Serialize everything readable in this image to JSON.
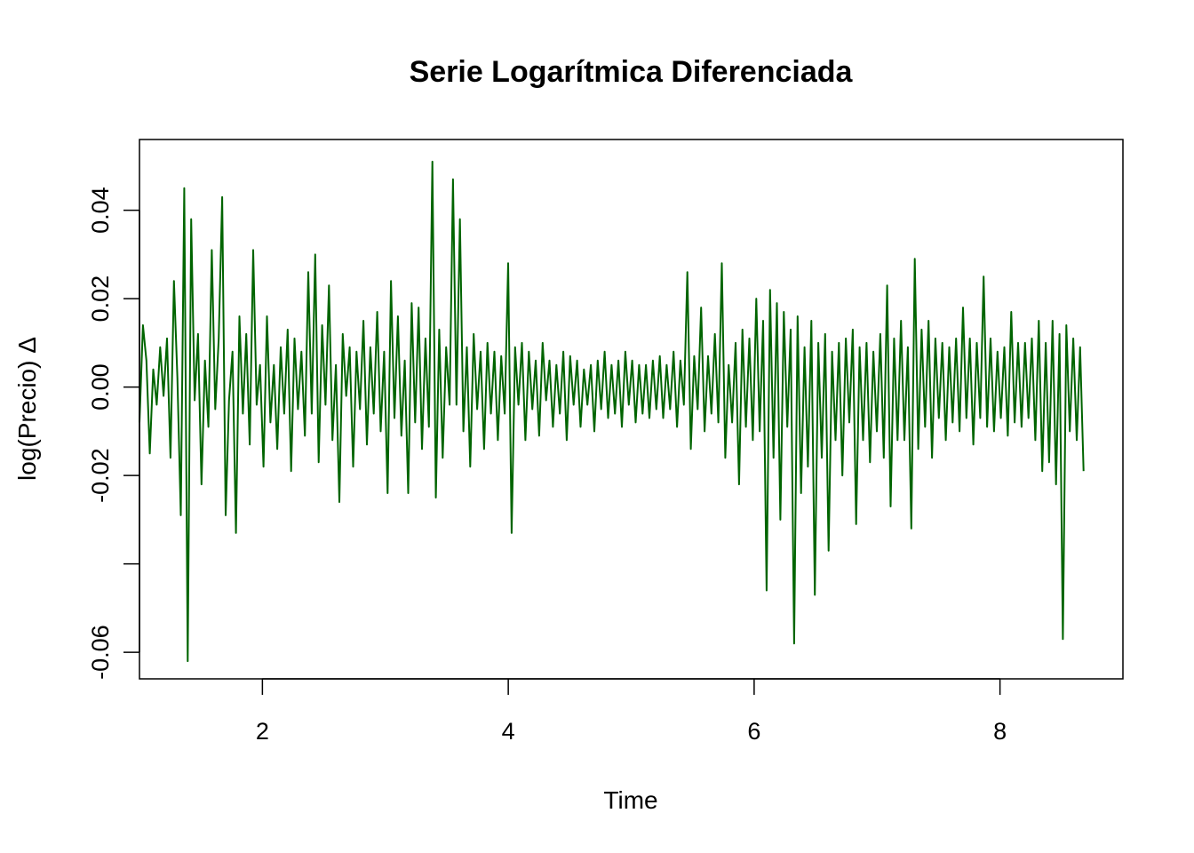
{
  "chart_data": {
    "type": "line",
    "title": "Serie Logarítmica Diferenciada",
    "xlabel": "Time",
    "ylabel": "log(Precio) Δ",
    "xlim": [
      1,
      9
    ],
    "ylim": [
      -0.066,
      0.056
    ],
    "xticks": [
      2,
      4,
      6,
      8
    ],
    "x_tick_labels": [
      "2",
      "4",
      "6",
      "8"
    ],
    "yticks": [
      -0.06,
      -0.04,
      -0.02,
      0.0,
      0.02,
      0.04
    ],
    "y_tick_labels": [
      "-0.06",
      "",
      "-0.02",
      "0.00",
      "0.02",
      "0.04"
    ],
    "series_color": "#006400",
    "grid": false,
    "legend": "none",
    "series": [
      {
        "x_start": 1.0,
        "x_end": 8.68,
        "values": [
          -0.008,
          0.014,
          0.006,
          -0.015,
          0.004,
          -0.004,
          0.009,
          -0.002,
          0.011,
          -0.016,
          0.024,
          0.002,
          -0.029,
          0.045,
          -0.062,
          0.038,
          -0.003,
          0.012,
          -0.022,
          0.006,
          -0.009,
          0.031,
          -0.005,
          0.011,
          0.043,
          -0.029,
          -0.003,
          0.008,
          -0.033,
          0.016,
          -0.006,
          0.012,
          -0.013,
          0.031,
          -0.004,
          0.005,
          -0.018,
          0.016,
          -0.008,
          0.005,
          -0.014,
          0.009,
          -0.006,
          0.013,
          -0.019,
          0.011,
          -0.005,
          0.008,
          -0.011,
          0.026,
          -0.006,
          0.03,
          -0.017,
          0.014,
          -0.004,
          0.023,
          -0.012,
          0.005,
          -0.026,
          0.012,
          -0.002,
          0.009,
          -0.018,
          0.008,
          -0.005,
          0.015,
          -0.013,
          0.009,
          -0.006,
          0.017,
          -0.01,
          0.008,
          -0.024,
          0.024,
          -0.007,
          0.016,
          -0.011,
          0.006,
          -0.024,
          0.019,
          -0.008,
          0.018,
          -0.014,
          0.011,
          -0.009,
          0.051,
          -0.025,
          0.013,
          -0.016,
          0.009,
          -0.004,
          0.047,
          -0.004,
          0.038,
          -0.01,
          0.009,
          -0.018,
          0.012,
          -0.005,
          0.008,
          -0.014,
          0.01,
          -0.006,
          0.008,
          -0.012,
          0.007,
          -0.006,
          0.028,
          -0.033,
          0.009,
          -0.004,
          0.01,
          -0.012,
          0.008,
          -0.005,
          0.006,
          -0.011,
          0.01,
          -0.003,
          0.006,
          -0.009,
          0.005,
          -0.006,
          0.008,
          -0.012,
          0.007,
          -0.004,
          0.006,
          -0.009,
          0.004,
          -0.004,
          0.005,
          -0.01,
          0.006,
          -0.005,
          0.008,
          -0.007,
          0.005,
          -0.006,
          0.006,
          -0.009,
          0.008,
          -0.004,
          0.006,
          -0.008,
          0.005,
          -0.006,
          0.005,
          -0.007,
          0.006,
          -0.005,
          0.007,
          -0.007,
          0.005,
          -0.005,
          0.008,
          -0.009,
          0.006,
          -0.004,
          0.026,
          -0.014,
          0.007,
          -0.005,
          0.018,
          -0.01,
          0.007,
          -0.006,
          0.012,
          -0.008,
          0.028,
          -0.016,
          0.005,
          -0.008,
          0.01,
          -0.022,
          0.013,
          -0.009,
          0.011,
          -0.012,
          0.02,
          -0.01,
          0.015,
          -0.046,
          0.022,
          -0.016,
          0.019,
          -0.03,
          0.017,
          -0.009,
          0.013,
          -0.058,
          0.016,
          -0.024,
          0.009,
          -0.018,
          0.015,
          -0.047,
          0.01,
          -0.016,
          0.012,
          -0.037,
          0.008,
          -0.012,
          0.01,
          -0.02,
          0.011,
          -0.008,
          0.013,
          -0.031,
          0.009,
          -0.012,
          0.01,
          -0.017,
          0.008,
          -0.01,
          0.012,
          -0.016,
          0.023,
          -0.027,
          0.011,
          -0.012,
          0.015,
          -0.012,
          0.009,
          -0.032,
          0.029,
          -0.014,
          0.013,
          -0.009,
          0.015,
          -0.016,
          0.011,
          -0.007,
          0.01,
          -0.012,
          0.009,
          -0.008,
          0.011,
          -0.01,
          0.018,
          -0.007,
          0.011,
          -0.013,
          0.01,
          -0.007,
          0.025,
          -0.009,
          0.011,
          -0.01,
          0.008,
          -0.007,
          0.009,
          -0.011,
          0.017,
          -0.008,
          0.01,
          -0.009,
          0.01,
          -0.007,
          0.011,
          -0.012,
          0.015,
          -0.019,
          0.01,
          -0.017,
          0.015,
          -0.022,
          0.012,
          -0.057,
          0.014,
          -0.01,
          0.011,
          -0.012,
          0.009,
          -0.019
        ]
      }
    ]
  }
}
